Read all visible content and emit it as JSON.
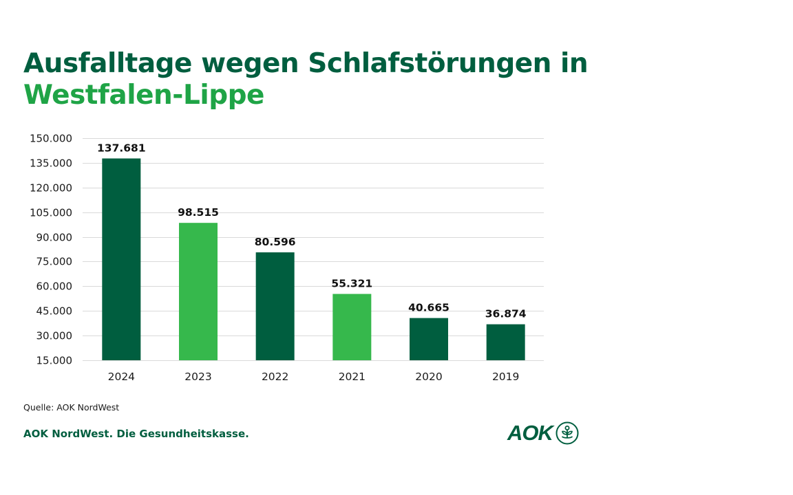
{
  "title": {
    "line1": "Ausfalltage wegen Schlafstörungen in",
    "line2": "Westfalen-Lippe"
  },
  "footer": {
    "source": "Quelle: AOK NordWest",
    "tagline": "AOK NordWest. Die Gesundheitskasse.",
    "logo_text": "AOK",
    "logo_icon": "aok-tree-icon"
  },
  "colors": {
    "dark_green": "#005e3f",
    "light_green": "#36b84c",
    "title_dark": "#005e3f",
    "title_light": "#1fa446",
    "grid": "#d9d9d9"
  },
  "chart_data": {
    "type": "bar",
    "title": "Ausfalltage wegen Schlafstörungen in Westfalen-Lippe",
    "xlabel": "",
    "ylabel": "",
    "categories": [
      "2024",
      "2023",
      "2022",
      "2021",
      "2020",
      "2019"
    ],
    "values": [
      137681,
      98515,
      80596,
      55321,
      40665,
      36874
    ],
    "value_labels": [
      "137.681",
      "98.515",
      "80.596",
      "55.321",
      "40.665",
      "36.874"
    ],
    "bar_colors": [
      "dark",
      "light",
      "dark",
      "light",
      "dark",
      "dark"
    ],
    "ylim": [
      15000,
      150000
    ],
    "yticks": [
      15000,
      30000,
      45000,
      60000,
      75000,
      90000,
      105000,
      120000,
      135000,
      150000
    ],
    "ytick_labels": [
      "15.000",
      "30.000",
      "45.000",
      "60.000",
      "75.000",
      "90.000",
      "105.000",
      "120.000",
      "135.000",
      "150.000"
    ],
    "grid": true,
    "legend": "none"
  }
}
